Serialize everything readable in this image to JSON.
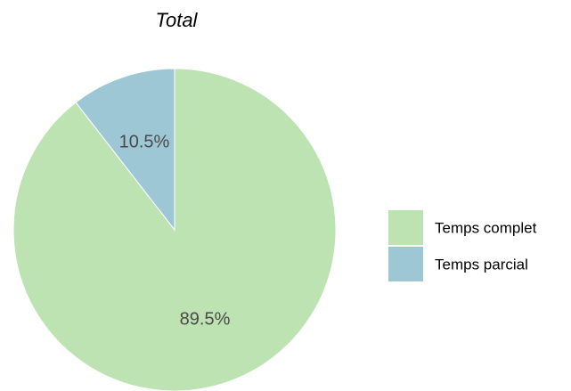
{
  "chart_data": {
    "type": "pie",
    "title": "Total",
    "start_angle_deg": 0,
    "direction": "clockwise",
    "legend_position": "right",
    "slices": [
      {
        "name": "Temps complet",
        "value": 89.5,
        "label": "89.5%",
        "color": "#bde3b2"
      },
      {
        "name": "Temps parcial",
        "value": 10.5,
        "label": "10.5%",
        "color": "#9ec7d6"
      }
    ]
  }
}
